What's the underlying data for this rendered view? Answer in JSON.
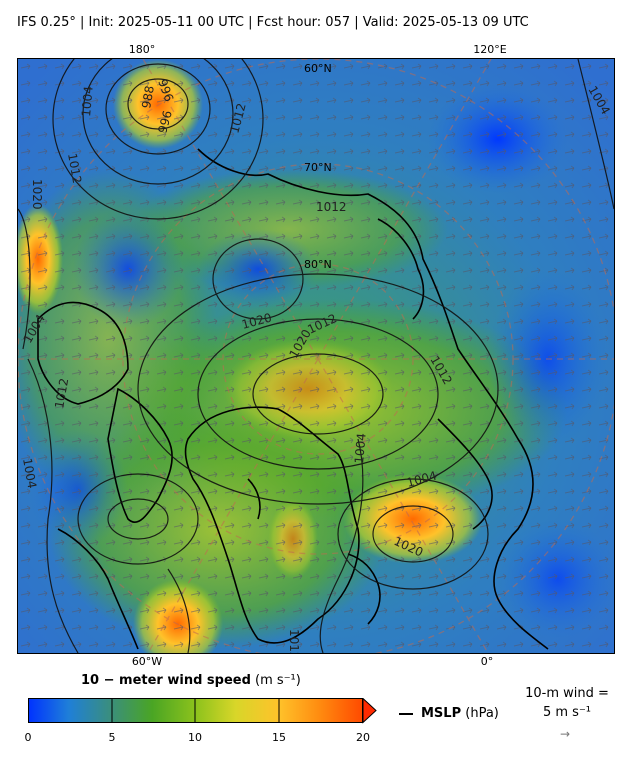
{
  "title": "IFS 0.25°  |  Init: 2025-05-11 00 UTC  |  Fcst hour: 057  |  Valid: 2025-05-13 09 UTC",
  "map": {
    "lon_labels_top": [
      "180°",
      "120°E"
    ],
    "lon_labels_bottom": [
      "60°W",
      "0°"
    ],
    "lat_labels": [
      "60°N",
      "70°N",
      "80°N"
    ],
    "isobar_labels": [
      "996",
      "988",
      "996",
      "1004",
      "1020",
      "1012",
      "1012",
      "1012",
      "1020",
      "1012",
      "1020",
      "1004",
      "1012",
      "1004",
      "1004",
      "1020",
      "1004",
      "1012",
      "1012",
      "1004"
    ]
  },
  "colorbar": {
    "title_bold": "10 − meter wind speed",
    "title_units": "(m s⁻¹)",
    "ticks": [
      "0",
      "5",
      "10",
      "15",
      "20"
    ],
    "colors": [
      "#0032ff",
      "#1f7fd8",
      "#3b8f7a",
      "#4aa524",
      "#8cc21c",
      "#d8d629",
      "#ffc22a",
      "#ff8c10",
      "#ff4a00"
    ]
  },
  "legend": {
    "mslp_bold": "MSLP",
    "mslp_units": "(hPa)",
    "wind_key_line1": "10-m wind =",
    "wind_key_line2": "5 m s⁻¹",
    "wind_arrow": "→"
  }
}
